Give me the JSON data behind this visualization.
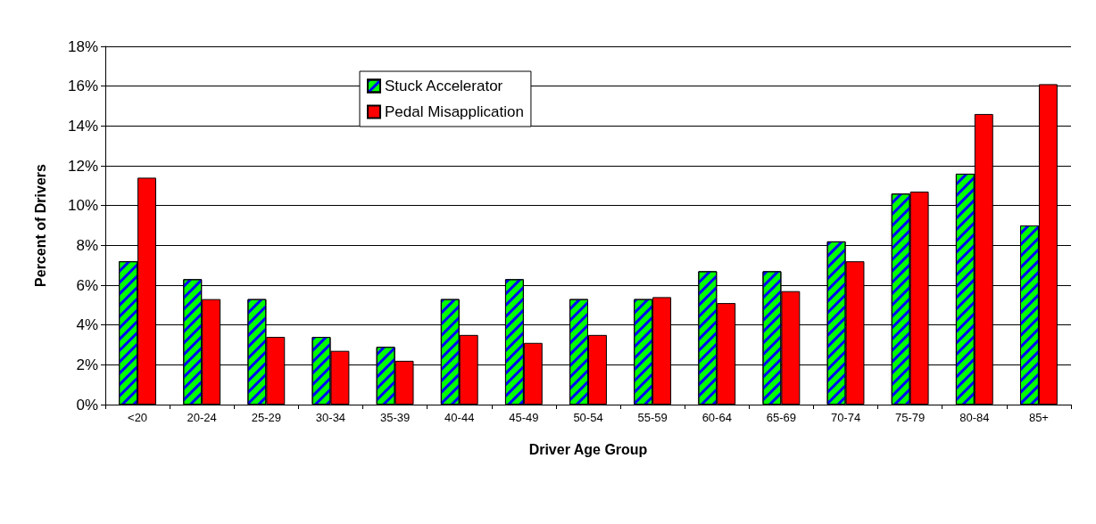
{
  "chart_data": {
    "type": "bar",
    "xlabel": "Driver Age Group",
    "ylabel": "Percent of Drivers",
    "categories": [
      "<20",
      "20-24",
      "25-29",
      "30-34",
      "35-39",
      "40-44",
      "45-49",
      "50-54",
      "55-59",
      "60-64",
      "65-69",
      "70-74",
      "75-79",
      "80-84",
      "85+"
    ],
    "series": [
      {
        "name": "Stuck Accelerator",
        "color": "#00ff00",
        "values": [
          7.2,
          6.3,
          5.3,
          3.4,
          2.9,
          5.3,
          6.3,
          5.3,
          5.3,
          6.7,
          6.7,
          8.2,
          10.6,
          11.6,
          9.0
        ]
      },
      {
        "name": "Pedal Misapplication",
        "color": "#ff0000",
        "values": [
          11.4,
          5.3,
          3.4,
          2.7,
          2.2,
          3.5,
          3.1,
          3.5,
          5.4,
          5.1,
          5.7,
          7.2,
          10.7,
          14.6,
          16.1
        ]
      }
    ],
    "ylim": [
      0,
      18
    ],
    "yticks": [
      {
        "value": 0,
        "label": "0%"
      },
      {
        "value": 2,
        "label": "2%"
      },
      {
        "value": 4,
        "label": "4%"
      },
      {
        "value": 6,
        "label": "6%"
      },
      {
        "value": 8,
        "label": "8%"
      },
      {
        "value": 10,
        "label": "10%"
      },
      {
        "value": 12,
        "label": "12%"
      },
      {
        "value": 14,
        "label": "14%"
      },
      {
        "value": 16,
        "label": "16%"
      },
      {
        "value": 18,
        "label": "18%"
      }
    ],
    "grid": "y",
    "legend": "top"
  }
}
